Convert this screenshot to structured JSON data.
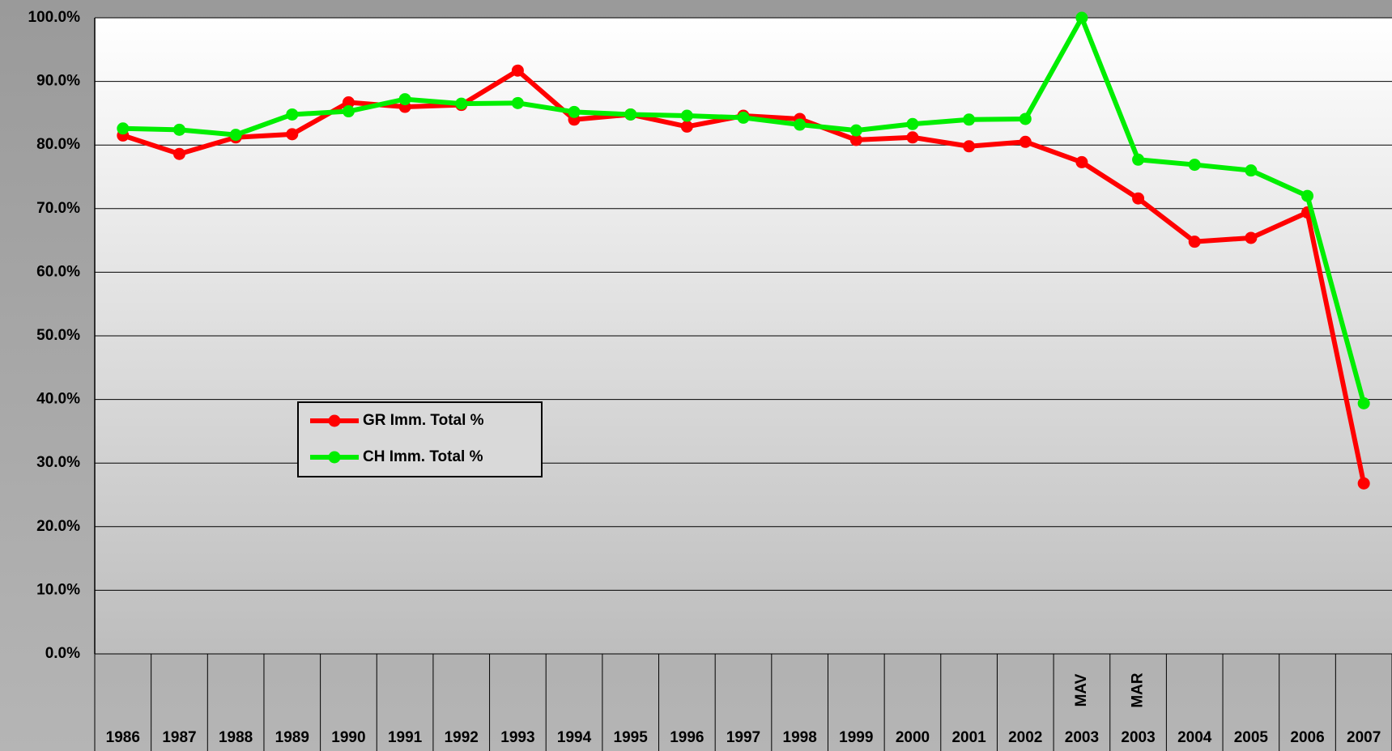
{
  "chart_data": {
    "type": "line",
    "categories": [
      "1986",
      "1987",
      "1988",
      "1989",
      "1990",
      "1991",
      "1992",
      "1993",
      "1994",
      "1995",
      "1996",
      "1997",
      "1998",
      "1999",
      "2000",
      "2001",
      "2002",
      "2003",
      "2003",
      "2004",
      "2005",
      "2006",
      "2007"
    ],
    "category_sublabels": [
      null,
      null,
      null,
      null,
      null,
      null,
      null,
      null,
      null,
      null,
      null,
      null,
      null,
      null,
      null,
      null,
      null,
      "MAV",
      "MAR",
      null,
      null,
      null,
      null
    ],
    "series": [
      {
        "name": "GR Imm. Total %",
        "color": "#ff0000",
        "values": [
          81.5,
          78.6,
          81.2,
          81.7,
          86.7,
          86.0,
          86.3,
          91.7,
          84.0,
          84.8,
          82.9,
          84.6,
          84.1,
          80.8,
          81.2,
          79.8,
          80.5,
          77.3,
          71.6,
          64.8,
          65.4,
          69.4,
          26.8
        ]
      },
      {
        "name": "CH Imm. Total %",
        "color": "#00ee00",
        "values": [
          82.6,
          82.4,
          81.6,
          84.8,
          85.3,
          87.2,
          86.5,
          86.6,
          85.2,
          84.8,
          84.6,
          84.3,
          83.2,
          82.3,
          83.3,
          84.0,
          84.1,
          100.0,
          77.7,
          76.9,
          76.0,
          72.0,
          39.4
        ]
      }
    ],
    "ylim": [
      0,
      100
    ],
    "yticks": [
      {
        "value": 0,
        "label": "0.0%"
      },
      {
        "value": 10,
        "label": "10.0%"
      },
      {
        "value": 20,
        "label": "20.0%"
      },
      {
        "value": 30,
        "label": "30.0%"
      },
      {
        "value": 40,
        "label": "40.0%"
      },
      {
        "value": 50,
        "label": "50.0%"
      },
      {
        "value": 60,
        "label": "60.0%"
      },
      {
        "value": 70,
        "label": "70.0%"
      },
      {
        "value": 80,
        "label": "80.0%"
      },
      {
        "value": 90,
        "label": "90.0%"
      },
      {
        "value": 100,
        "label": "100.0%"
      }
    ],
    "grid": true
  }
}
